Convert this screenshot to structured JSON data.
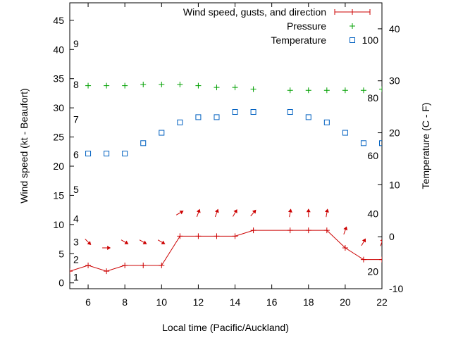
{
  "chart_data": {
    "type": "line",
    "title": "",
    "xlabel": "Local time (Pacific/Auckland)",
    "ylabel": "Wind speed (kt - Beaufort)",
    "y2label": "Temperature (C - F)",
    "xlim": [
      5,
      22
    ],
    "ylim": [
      -1,
      48
    ],
    "y2lim": [
      -10,
      45
    ],
    "x_ticks": [
      6,
      8,
      10,
      12,
      14,
      16,
      18,
      20,
      22
    ],
    "y_ticks": [
      0,
      5,
      10,
      15,
      20,
      25,
      30,
      35,
      40,
      45
    ],
    "y2_ticks": [
      -10,
      0,
      10,
      20,
      30,
      40
    ],
    "beaufort_labels": [
      {
        "label": "1",
        "y": 1
      },
      {
        "label": "2",
        "y": 4
      },
      {
        "label": "3",
        "y": 7
      },
      {
        "label": "4",
        "y": 11
      },
      {
        "label": "5",
        "y": 16
      },
      {
        "label": "6",
        "y": 22
      },
      {
        "label": "7",
        "y": 28
      },
      {
        "label": "8",
        "y": 34
      },
      {
        "label": "9",
        "y": 41
      }
    ],
    "fahrenheit_labels": [
      {
        "label": "20",
        "y2": -6.7
      },
      {
        "label": "40",
        "y2": 4.4
      },
      {
        "label": "60",
        "y2": 15.6
      },
      {
        "label": "80",
        "y2": 26.7
      },
      {
        "label": "100",
        "y2": 37.8
      }
    ],
    "legend": [
      {
        "label": "Wind speed, gusts, and direction",
        "color": "#cc0000",
        "marker": "line-plus"
      },
      {
        "label": "Pressure",
        "color": "#00a000",
        "marker": "plus"
      },
      {
        "label": "Temperature",
        "color": "#0060c0",
        "marker": "square"
      }
    ],
    "legend_position": "top-right",
    "series": [
      {
        "name": "Wind speed, gusts, and direction",
        "axis": "y",
        "color": "#cc0000",
        "x": [
          5,
          6,
          7,
          8,
          9,
          10,
          11,
          12,
          13,
          14,
          15,
          17,
          18,
          19,
          20,
          21,
          22
        ],
        "values": [
          2,
          3,
          2,
          3,
          3,
          3,
          8,
          8,
          8,
          8,
          9,
          9,
          9,
          9,
          6,
          4,
          4
        ]
      },
      {
        "name": "Pressure",
        "axis": "y",
        "color": "#00a000",
        "x": [
          6,
          7,
          8,
          9,
          10,
          11,
          12,
          13,
          14,
          15,
          17,
          18,
          19,
          20,
          21,
          22
        ],
        "values": [
          33.8,
          33.8,
          33.8,
          34.0,
          34.0,
          34.0,
          33.8,
          33.5,
          33.5,
          33.2,
          33.0,
          33.0,
          33.0,
          33.0,
          33.0,
          33.2
        ]
      },
      {
        "name": "Temperature",
        "axis": "y2",
        "color": "#0060c0",
        "x": [
          6,
          7,
          8,
          9,
          10,
          11,
          12,
          13,
          14,
          15,
          17,
          18,
          19,
          20,
          21,
          22
        ],
        "values": [
          16,
          16,
          16,
          18,
          20,
          22,
          23,
          23,
          24,
          24,
          24,
          23,
          22,
          20,
          18,
          18
        ]
      }
    ],
    "wind_direction_arrows": [
      {
        "x": 6,
        "y": 7,
        "deg": 315
      },
      {
        "x": 7,
        "y": 6,
        "deg": 270
      },
      {
        "x": 8,
        "y": 7,
        "deg": 300
      },
      {
        "x": 9,
        "y": 7,
        "deg": 300
      },
      {
        "x": 10,
        "y": 7,
        "deg": 300
      },
      {
        "x": 11,
        "y": 12,
        "deg": 240
      },
      {
        "x": 12,
        "y": 12,
        "deg": 200
      },
      {
        "x": 13,
        "y": 12,
        "deg": 200
      },
      {
        "x": 14,
        "y": 12,
        "deg": 210
      },
      {
        "x": 15,
        "y": 12,
        "deg": 220
      },
      {
        "x": 17,
        "y": 12,
        "deg": 190
      },
      {
        "x": 18,
        "y": 12,
        "deg": 180
      },
      {
        "x": 19,
        "y": 12,
        "deg": 190
      },
      {
        "x": 20,
        "y": 9,
        "deg": 200
      },
      {
        "x": 21,
        "y": 7,
        "deg": 210
      },
      {
        "x": 22,
        "y": 7,
        "deg": 200
      }
    ]
  }
}
